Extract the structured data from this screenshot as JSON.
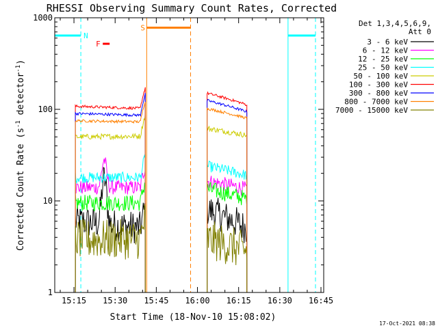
{
  "chart_data": {
    "type": "line",
    "title": "RHESSI Observing Summary Count Rates, Corrected",
    "xlabel": "Start Time (18-Nov-10 15:08:02)",
    "ylabel_main": "Corrected Count Rate (s",
    "ylabel_sup1": "-1",
    "ylabel_mid": " detector",
    "ylabel_sup2": "-1",
    "ylabel_end": ")",
    "yscale": "log",
    "ylim": [
      1,
      1000
    ],
    "xlim_minutes": [
      0,
      98
    ],
    "x_ticks": [
      {
        "minutes": 7,
        "label": "15:15"
      },
      {
        "minutes": 22,
        "label": "15:30"
      },
      {
        "minutes": 37,
        "label": "15:45"
      },
      {
        "minutes": 52,
        "label": "16:00"
      },
      {
        "minutes": 67,
        "label": "16:15"
      },
      {
        "minutes": 82,
        "label": "16:30"
      },
      {
        "minutes": 97,
        "label": "16:45"
      }
    ],
    "y_ticks": [
      {
        "value": 1,
        "label": "1"
      },
      {
        "value": 10,
        "label": "10"
      },
      {
        "value": 100,
        "label": "100"
      },
      {
        "value": 1000,
        "label": "1000"
      }
    ],
    "legend_header": [
      "Det 1,3,4,5,6,9,",
      "Att 0"
    ],
    "series": [
      {
        "name": "3 - 6 keV",
        "color": "#000000",
        "seg1": [
          6.0,
          5.0
        ],
        "seg2": [
          8.0,
          5.0
        ],
        "bump": 18,
        "noise": 0.18
      },
      {
        "name": "6 - 12 keV",
        "color": "#ff00ff",
        "seg1": [
          14.0,
          14.0
        ],
        "seg2": [
          16.5,
          13.5
        ],
        "bump": 28,
        "noise": 0.08
      },
      {
        "name": "12 - 25 keV",
        "color": "#00ff00",
        "seg1": [
          9.5,
          9.5
        ],
        "seg2": [
          13.5,
          10.5
        ],
        "bump": 0,
        "noise": 0.09
      },
      {
        "name": "25 - 50 keV",
        "color": "#00ffff",
        "seg1": [
          18.0,
          18.0
        ],
        "seg2": [
          24.0,
          19.0
        ],
        "bump": 0,
        "noise": 0.06
      },
      {
        "name": "50 - 100 keV",
        "color": "#cccc00",
        "seg1": [
          50.0,
          51.0
        ],
        "seg2": [
          62.0,
          52.0
        ],
        "bump": 0,
        "noise": 0.03
      },
      {
        "name": "100 - 300 keV",
        "color": "#ff0000",
        "seg1": [
          108.0,
          102.0
        ],
        "seg2": [
          150.0,
          112.0
        ],
        "bump": 0,
        "noise": 0.015
      },
      {
        "name": "300 - 800 keV",
        "color": "#0000ff",
        "seg1": [
          90.0,
          86.0
        ],
        "seg2": [
          125.0,
          94.0
        ],
        "bump": 0,
        "noise": 0.015
      },
      {
        "name": "800 - 7000 keV",
        "color": "#ff8000",
        "seg1": [
          75.0,
          73.0
        ],
        "seg2": [
          102.0,
          80.0
        ],
        "bump": 0,
        "noise": 0.015
      },
      {
        "name": "7000 - 15000 keV",
        "color": "#808000",
        "seg1": [
          3.8,
          3.8
        ],
        "seg2": [
          3.8,
          2.8
        ],
        "bump": 0,
        "noise": 0.22
      }
    ],
    "data_segments_minutes": [
      [
        7.5,
        33
      ],
      [
        55.5,
        70
      ]
    ],
    "markers": [
      {
        "label": "N",
        "color": "#00ffff",
        "ranges_minutes": [
          [
            0,
            9.5
          ],
          [
            85,
            95
          ]
        ],
        "level": 640,
        "boundaries_minutes": [
          0,
          9.5,
          85,
          95
        ]
      },
      {
        "label": "S",
        "color": "#ff8000",
        "ranges_minutes": [
          [
            33.5,
            49.5
          ]
        ],
        "level": 780,
        "boundaries_minutes": [
          33.5,
          49.5
        ]
      },
      {
        "label": "F",
        "color": "#ff0000",
        "ranges_minutes": [
          [
            17.5,
            20
          ]
        ],
        "level": 520,
        "boundaries_minutes": []
      }
    ],
    "footer_stamp": "17-Oct-2021 08:38"
  }
}
